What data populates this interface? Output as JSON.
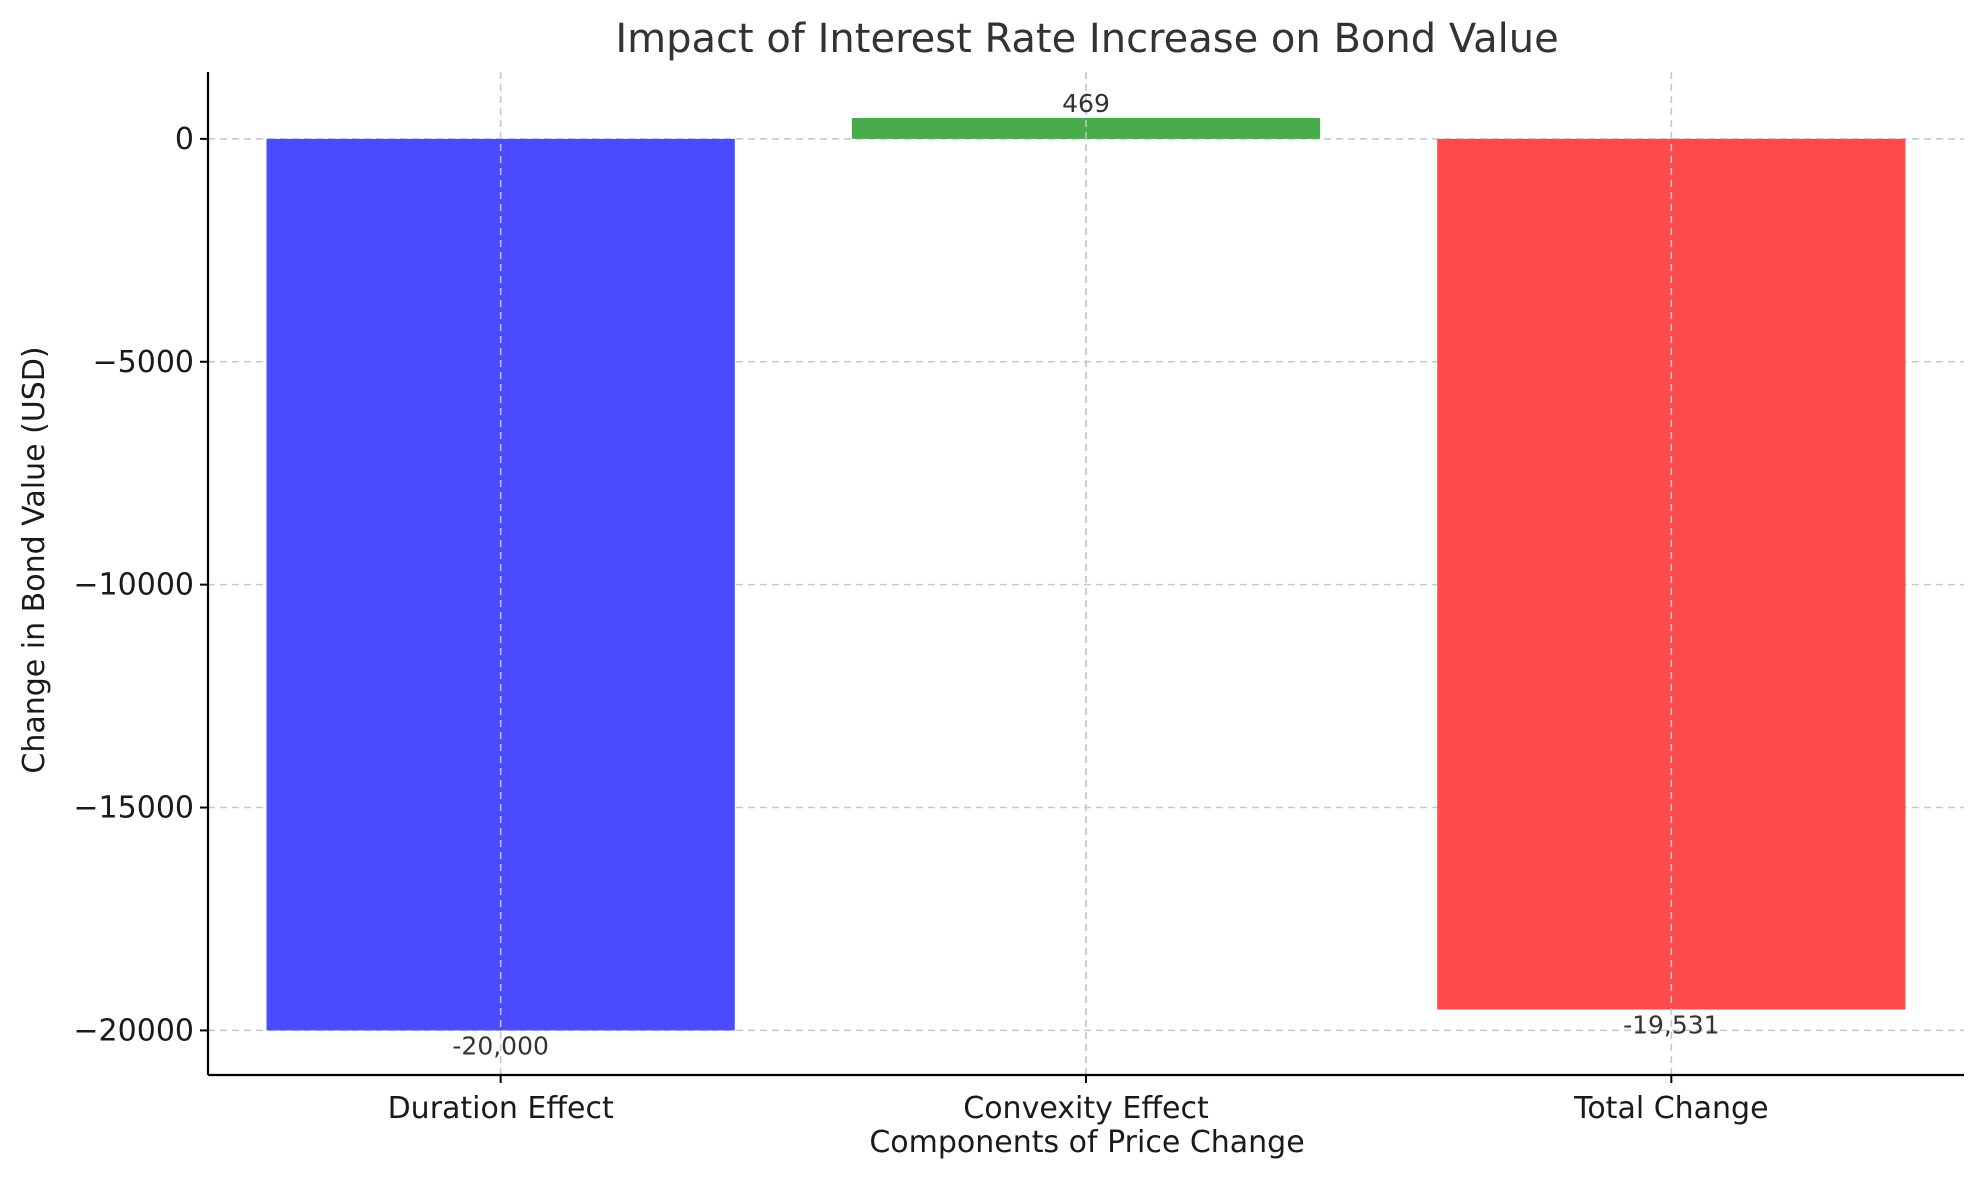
{
  "chart_data": {
    "type": "bar",
    "title": "Impact of Interest Rate Increase on Bond Value",
    "xlabel": "Components of Price Change",
    "ylabel": "Change in Bond Value (USD)",
    "categories": [
      "Duration Effect",
      "Convexity Effect",
      "Total Change"
    ],
    "values": [
      -20000,
      469,
      -19531
    ],
    "data_labels": [
      "-20,000",
      "469",
      "-19,531"
    ],
    "colors": [
      "#4b4bff",
      "#4aab4a",
      "#ff4b4b"
    ],
    "ylim": [
      -21000,
      1500
    ],
    "yticks": [
      0,
      -5000,
      -10000,
      -15000,
      -20000
    ],
    "ytick_labels": [
      "0",
      "−5000",
      "−10000",
      "−15000",
      "−20000"
    ],
    "grid": true,
    "legend": "none"
  }
}
